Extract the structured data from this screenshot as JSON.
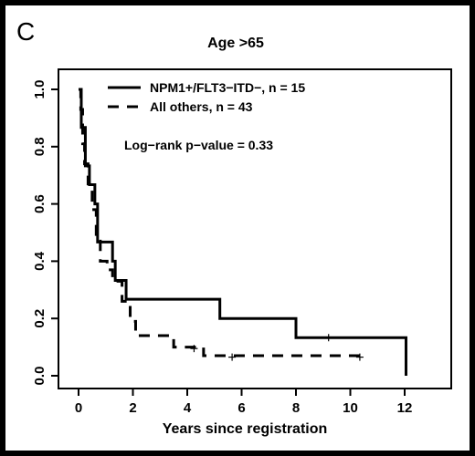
{
  "chart_data": {
    "type": "line",
    "panel_label": "C",
    "title": "Age >65",
    "xlabel": "Years since registration",
    "ylabel": "",
    "xlim": [
      0,
      12
    ],
    "ylim": [
      0,
      1
    ],
    "xticks": [
      "0",
      "2",
      "4",
      "6",
      "8",
      "10",
      "12"
    ],
    "yticks": [
      "0.0",
      "0.2",
      "0.4",
      "0.6",
      "0.8",
      "1.0"
    ],
    "annotation": "Log−rank p−value = 0.33",
    "legend_position": "top",
    "series": [
      {
        "name": "NPM1+/FLT3−ITD−, n = 15",
        "style": "solid",
        "steps": [
          [
            0,
            1.0
          ],
          [
            0.1,
            0.867
          ],
          [
            0.25,
            0.733
          ],
          [
            0.4,
            0.667
          ],
          [
            0.6,
            0.6
          ],
          [
            0.7,
            0.467
          ],
          [
            1.25,
            0.4
          ],
          [
            1.35,
            0.333
          ],
          [
            1.75,
            0.267
          ],
          [
            5.2,
            0.2
          ],
          [
            8.0,
            0.133
          ],
          [
            12.05,
            0.0
          ]
        ],
        "end_x": 12.05,
        "censor": [
          [
            9.2,
            0.133
          ]
        ]
      },
      {
        "name": "All others, n = 43",
        "style": "dashed",
        "steps": [
          [
            0,
            1.0
          ],
          [
            0.08,
            0.93
          ],
          [
            0.15,
            0.81
          ],
          [
            0.22,
            0.74
          ],
          [
            0.35,
            0.67
          ],
          [
            0.5,
            0.58
          ],
          [
            0.65,
            0.47
          ],
          [
            0.8,
            0.4
          ],
          [
            1.05,
            0.37
          ],
          [
            1.25,
            0.33
          ],
          [
            1.6,
            0.26
          ],
          [
            1.9,
            0.19
          ],
          [
            2.1,
            0.14
          ],
          [
            2.75,
            0.14
          ],
          [
            3.5,
            0.1
          ],
          [
            4.6,
            0.07
          ]
        ],
        "end_x": 10.4,
        "censor": [
          [
            4.25,
            0.095
          ],
          [
            5.65,
            0.065
          ],
          [
            10.35,
            0.065
          ]
        ]
      }
    ]
  }
}
